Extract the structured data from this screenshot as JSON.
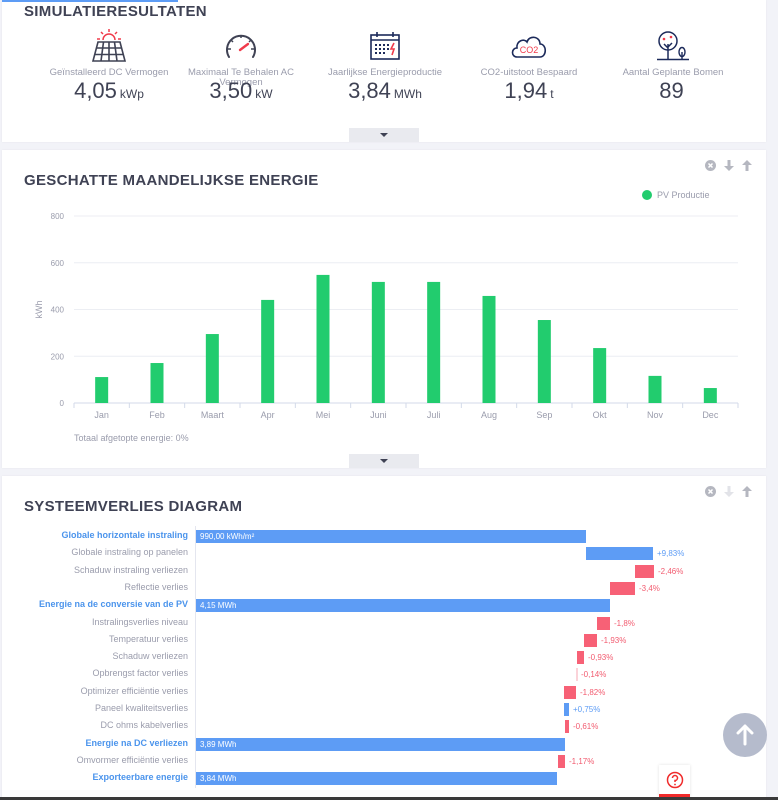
{
  "stats_card": {
    "title": "SIMULATIERESULTATEN",
    "items": [
      {
        "icon": "solar-panel-icon",
        "label": "Geïnstalleerd DC Vermogen",
        "value": "4,05",
        "unit": "kWp"
      },
      {
        "icon": "speedometer-icon",
        "label": "Maximaal Te Behalen AC Vermogen",
        "value": "3,50",
        "unit": "kW"
      },
      {
        "icon": "calendar-energy-icon",
        "label": "Jaarlijkse Energieproductie",
        "value": "3,84",
        "unit": "MWh"
      },
      {
        "icon": "co2-cloud-icon",
        "label": "CO2-uitstoot Bespaard",
        "value": "1,94",
        "unit": "t"
      },
      {
        "icon": "trees-icon",
        "label": "Aantal Geplante Bomen",
        "value": "89",
        "unit": ""
      }
    ],
    "co2_icon_text": "CO2"
  },
  "chart_card": {
    "title": "GESCHATTE MAANDELIJKSE ENERGIE",
    "footer": "Totaal afgetopte energie: 0%"
  },
  "chart_data": {
    "type": "bar",
    "title": "GESCHATTE MAANDELIJKSE ENERGIE",
    "xlabel": "",
    "ylabel": "kWh",
    "ylim": [
      0,
      800
    ],
    "yticks": [
      0,
      200,
      400,
      600,
      800
    ],
    "grid": true,
    "legend_position": "top-right",
    "categories": [
      "Jan",
      "Feb",
      "Maart",
      "Apr",
      "Mei",
      "Juni",
      "Juli",
      "Aug",
      "Sep",
      "Okt",
      "Nov",
      "Dec"
    ],
    "series": [
      {
        "name": "PV Productie",
        "color": "#22cc6e",
        "values": [
          111,
          171,
          295,
          441,
          548,
          518,
          518,
          458,
          355,
          235,
          116,
          64
        ]
      }
    ]
  },
  "loss_card": {
    "title": "SYSTEEMVERLIES DIAGRAM",
    "rows": [
      {
        "label": "Globale horizontale instraling",
        "type": "total",
        "bar_text": "990,00 kWh/m²",
        "value_text": ""
      },
      {
        "label": "Globale instraling op panelen",
        "type": "gain",
        "bar_text": "",
        "value_text": "+9,83%"
      },
      {
        "label": "Schaduw instraling verliezen",
        "type": "loss",
        "bar_text": "",
        "value_text": "-2,46%"
      },
      {
        "label": "Reflectie verlies",
        "type": "loss",
        "bar_text": "",
        "value_text": "-3,4%"
      },
      {
        "label": "Energie na de conversie van de PV",
        "type": "total",
        "bar_text": "4,15 MWh",
        "value_text": ""
      },
      {
        "label": "Instralingsverlies niveau",
        "type": "loss",
        "bar_text": "",
        "value_text": "-1,8%"
      },
      {
        "label": "Temperatuur verlies",
        "type": "loss",
        "bar_text": "",
        "value_text": "-1,93%"
      },
      {
        "label": "Schaduw verliezen",
        "type": "loss",
        "bar_text": "",
        "value_text": "-0,93%"
      },
      {
        "label": "Opbrengst factor verlies",
        "type": "loss",
        "bar_text": "",
        "value_text": "-0,14%"
      },
      {
        "label": "Optimizer efficiëntie verlies",
        "type": "loss",
        "bar_text": "",
        "value_text": "-1,82%"
      },
      {
        "label": "Paneel kwaliteitsverlies",
        "type": "gain",
        "bar_text": "",
        "value_text": "+0,75%"
      },
      {
        "label": "DC ohms kabelverlies",
        "type": "loss",
        "bar_text": "",
        "value_text": "-0,61%"
      },
      {
        "label": "Energie na DC verliezen",
        "type": "total",
        "bar_text": "3,89 MWh",
        "value_text": ""
      },
      {
        "label": "Omvormer efficiëntie verlies",
        "type": "loss",
        "bar_text": "",
        "value_text": "-1,17%"
      },
      {
        "label": "Exporteerbare energie",
        "type": "total",
        "bar_text": "3,84 MWh",
        "value_text": ""
      }
    ]
  },
  "colors": {
    "accent_blue": "#5d9cf5",
    "loss_red": "#f76176",
    "pv_green": "#22cc6e",
    "help_red": "#f02b2b"
  }
}
